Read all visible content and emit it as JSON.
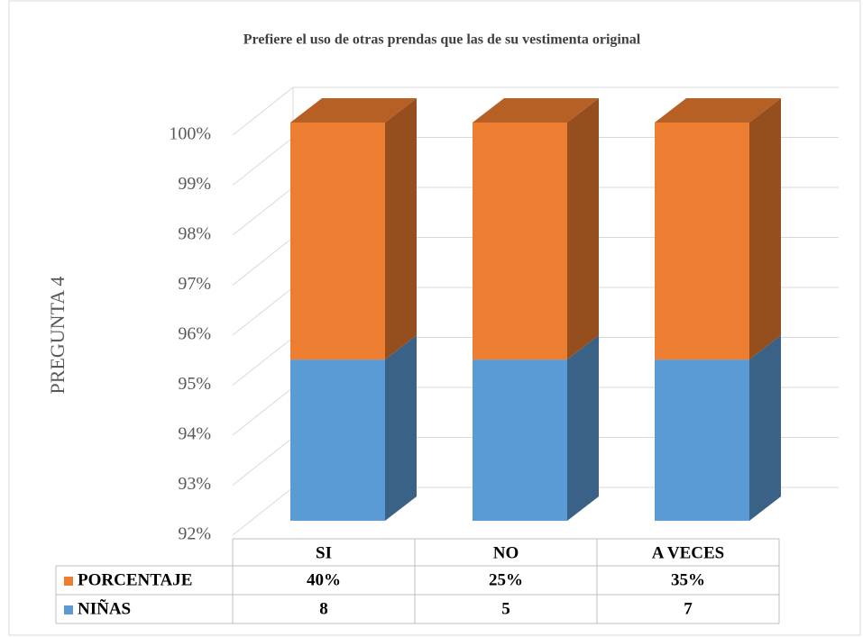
{
  "chart_data": {
    "type": "bar3d_stacked_percent",
    "title": "Prefiere el uso de otras prendas que las de su vestimenta original",
    "y_label": "PREGUNTA 4",
    "categories": [
      "SI",
      "NO",
      "A VECES"
    ],
    "series": [
      {
        "name": "NIÑAS",
        "color": "#5b9bd5",
        "values": [
          8,
          5,
          7
        ]
      },
      {
        "name": "PORCENTAJE",
        "color": "#ed7d31",
        "values": [
          0.4,
          0.25,
          0.35
        ],
        "value_labels": [
          "40%",
          "25%",
          "35%"
        ]
      }
    ],
    "ylim": [
      92,
      100
    ],
    "yticks": [
      {
        "value": 92,
        "label": "92%"
      },
      {
        "value": 93,
        "label": "93%"
      },
      {
        "value": 94,
        "label": "94%"
      },
      {
        "value": 95,
        "label": "95%"
      },
      {
        "value": 96,
        "label": "96%"
      },
      {
        "value": 97,
        "label": "97%"
      },
      {
        "value": 98,
        "label": "98%"
      },
      {
        "value": 99,
        "label": "99%"
      },
      {
        "value": 100,
        "label": "100%"
      }
    ],
    "grid": true,
    "data_table": true
  }
}
